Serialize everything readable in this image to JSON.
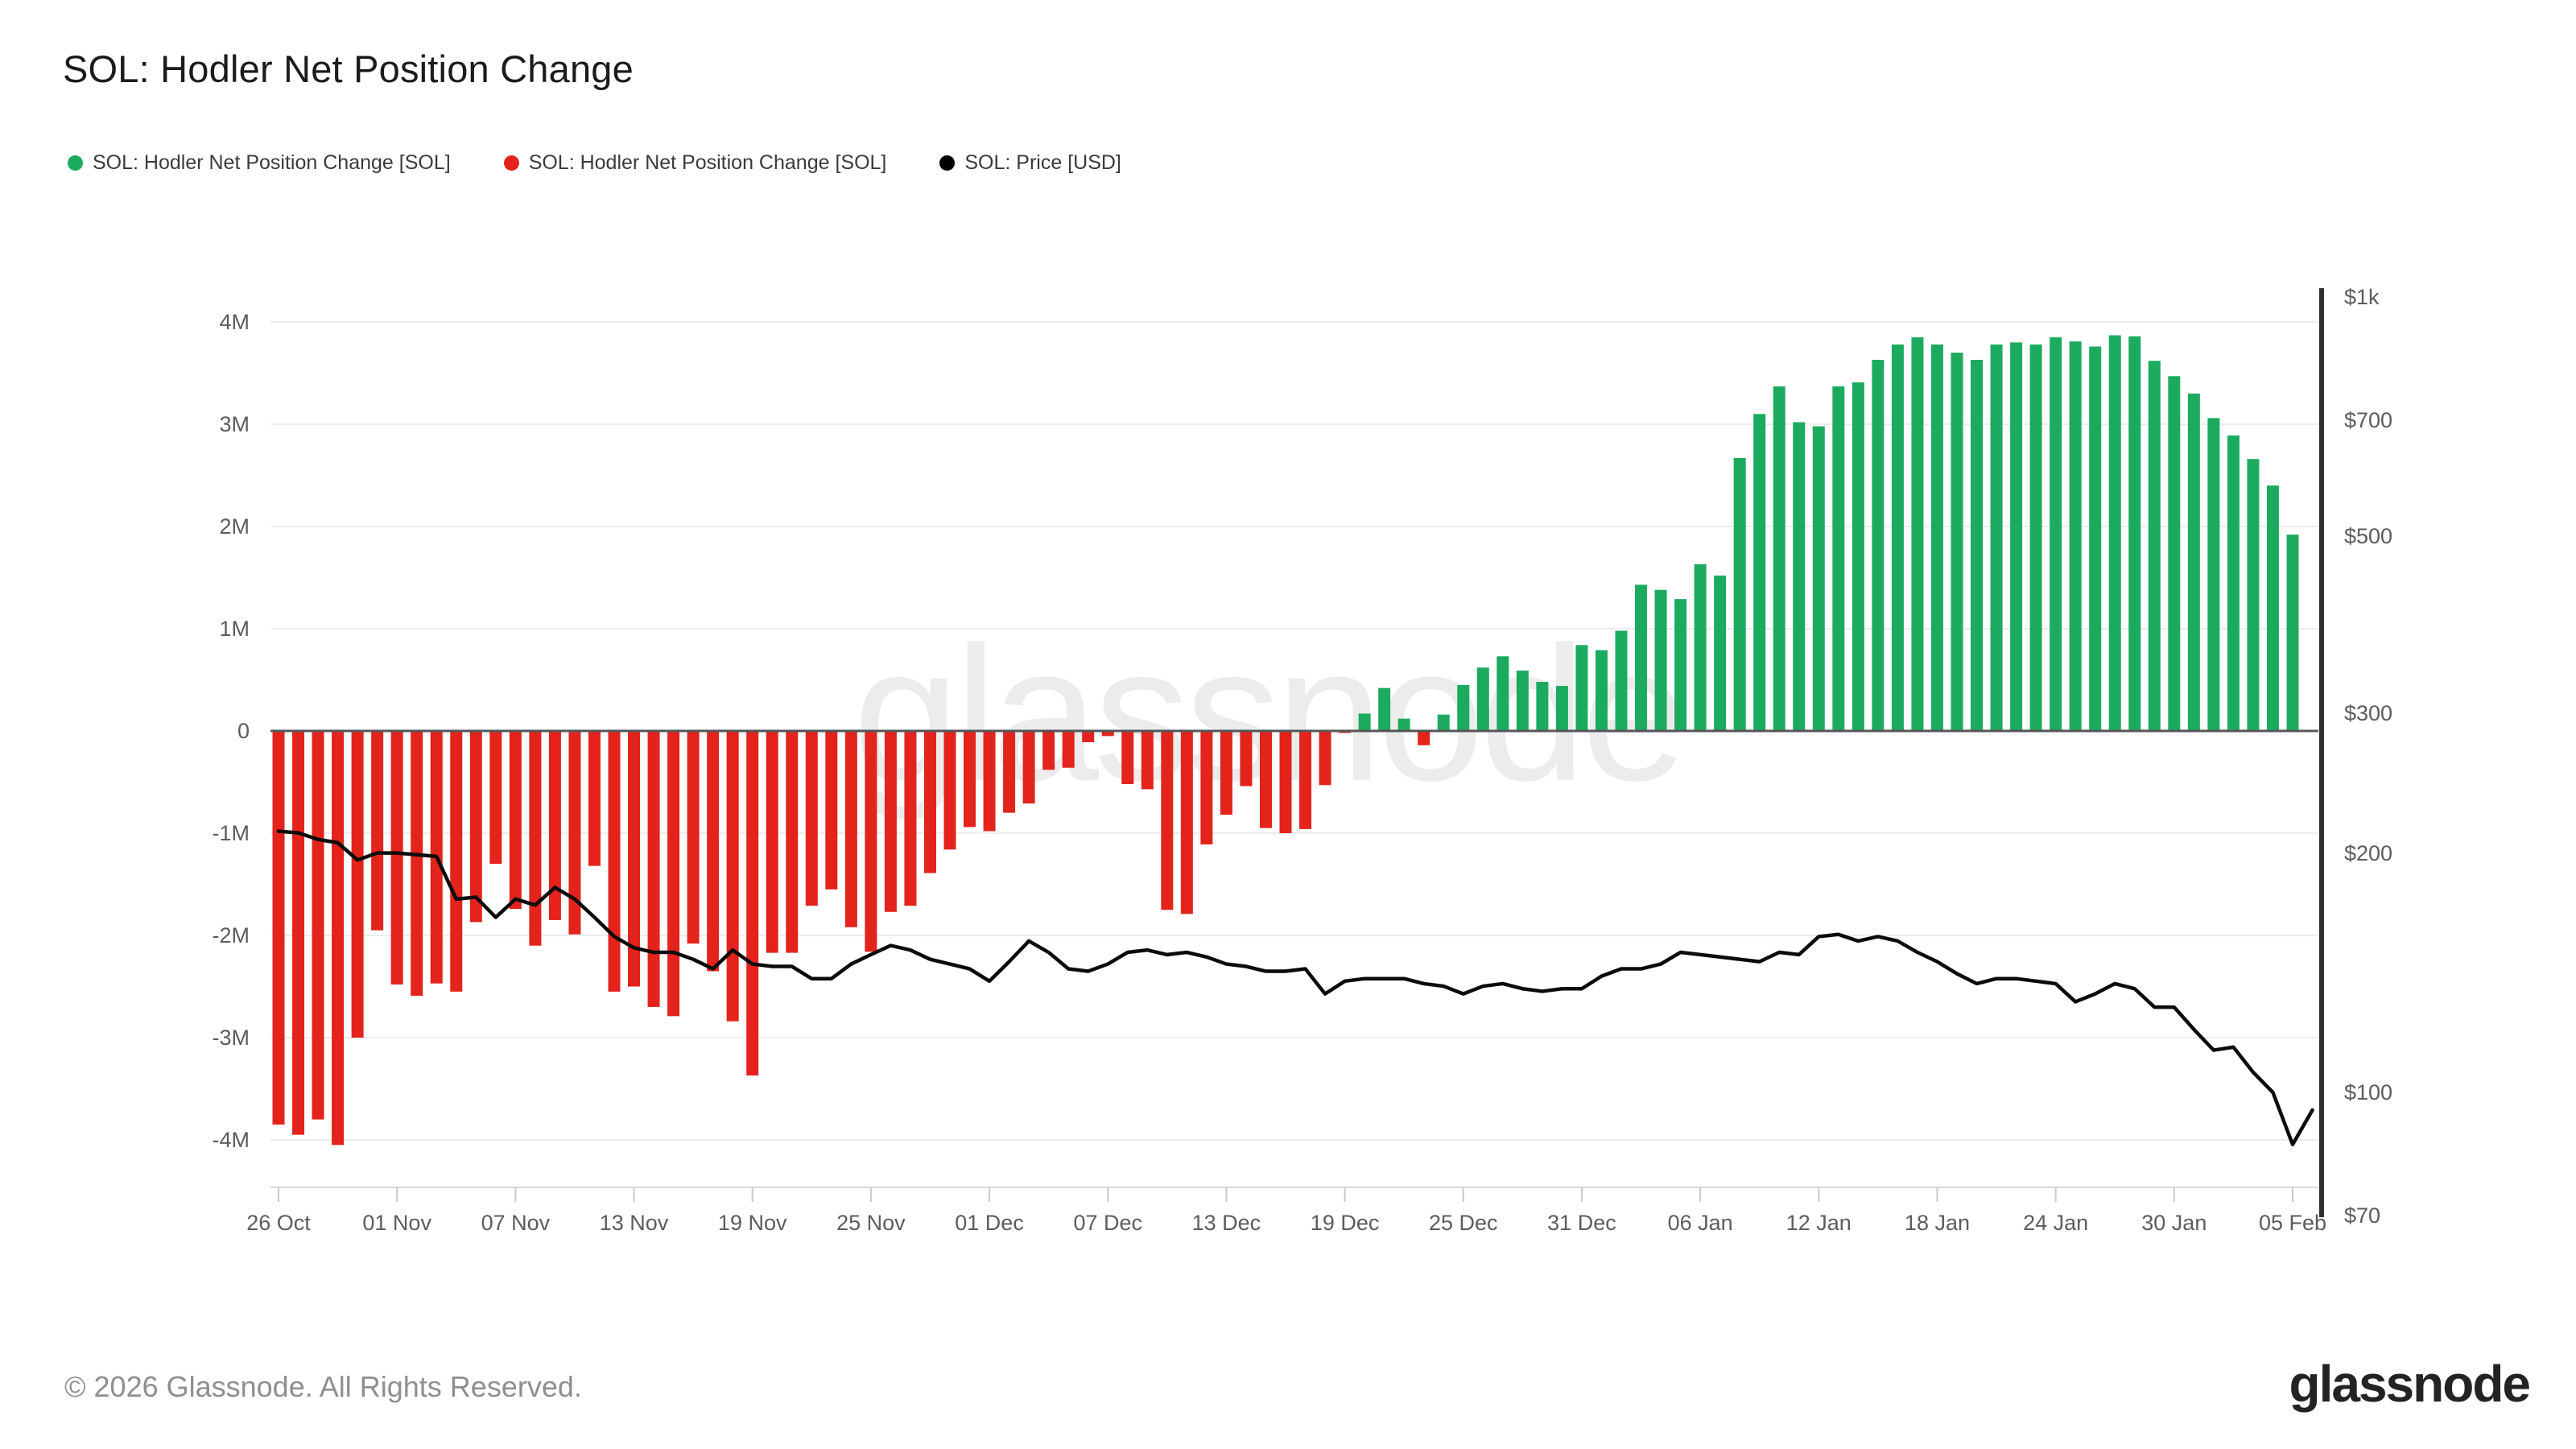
{
  "header": {
    "title": "SOL: Hodler Net Position Change"
  },
  "legend": {
    "items": [
      {
        "label": "SOL: Hodler Net Position Change [SOL]",
        "color": "#1CAB5E",
        "marker": "circle"
      },
      {
        "label": "SOL: Hodler Net Position Change [SOL]",
        "color": "#E3231C",
        "marker": "circle"
      },
      {
        "label": "SOL: Price [USD]",
        "color": "#000000",
        "marker": "circle"
      }
    ]
  },
  "watermark": "glassnode",
  "footer": {
    "copyright": "© 2026 Glassnode. All Rights Reserved.",
    "brand": "glassnode"
  },
  "chart_data": {
    "type": "bar",
    "title": "SOL: Hodler Net Position Change",
    "subtitle": "",
    "legend_position": "top-left",
    "grid": true,
    "left_axis": {
      "unit": "M SOL",
      "range": [
        -4.6,
        4.6
      ],
      "tick_labels": [
        "4M",
        "3M",
        "2M",
        "1M",
        "0",
        "-1M",
        "-2M",
        "-3M",
        "-4M"
      ],
      "tick_values": [
        4,
        3,
        2,
        1,
        0,
        -1,
        -2,
        -3,
        -4
      ]
    },
    "right_axis": {
      "unit": "USD",
      "scale": "log",
      "ticks": [
        {
          "label": "$1k",
          "value": 1000
        },
        {
          "label": "$700",
          "value": 700
        },
        {
          "label": "$500",
          "value": 500
        },
        {
          "label": "$300",
          "value": 300
        },
        {
          "label": "$200",
          "value": 200
        },
        {
          "label": "$100",
          "value": 100
        },
        {
          "label": "$70",
          "value": 70
        }
      ]
    },
    "x_ticks": [
      "26 Oct",
      "01 Nov",
      "07 Nov",
      "13 Nov",
      "19 Nov",
      "25 Nov",
      "01 Dec",
      "07 Dec",
      "13 Dec",
      "19 Dec",
      "25 Dec",
      "31 Dec",
      "06 Jan",
      "12 Jan",
      "18 Jan",
      "24 Jan",
      "30 Jan",
      "05 Feb"
    ],
    "x_tick_step": 6,
    "colors": {
      "positive": "#1CAB5E",
      "negative": "#E3231C",
      "price": "#0b0b0b",
      "gridline": "#ededf0",
      "zero_line": "#55565a",
      "right_axis_line": "#2f2f33",
      "x_axis_line": "#d9d9de"
    },
    "dates": [
      "26 Oct",
      "27 Oct",
      "28 Oct",
      "29 Oct",
      "30 Oct",
      "31 Oct",
      "01 Nov",
      "02 Nov",
      "03 Nov",
      "04 Nov",
      "05 Nov",
      "06 Nov",
      "07 Nov",
      "08 Nov",
      "09 Nov",
      "10 Nov",
      "11 Nov",
      "12 Nov",
      "13 Nov",
      "14 Nov",
      "15 Nov",
      "16 Nov",
      "17 Nov",
      "18 Nov",
      "19 Nov",
      "20 Nov",
      "21 Nov",
      "22 Nov",
      "23 Nov",
      "24 Nov",
      "25 Nov",
      "26 Nov",
      "27 Nov",
      "28 Nov",
      "29 Nov",
      "30 Nov",
      "01 Dec",
      "02 Dec",
      "03 Dec",
      "04 Dec",
      "05 Dec",
      "06 Dec",
      "07 Dec",
      "08 Dec",
      "09 Dec",
      "10 Dec",
      "11 Dec",
      "12 Dec",
      "13 Dec",
      "14 Dec",
      "15 Dec",
      "16 Dec",
      "17 Dec",
      "18 Dec",
      "19 Dec",
      "20 Dec",
      "21 Dec",
      "22 Dec",
      "23 Dec",
      "24 Dec",
      "25 Dec",
      "26 Dec",
      "27 Dec",
      "28 Dec",
      "29 Dec",
      "30 Dec",
      "31 Dec",
      "01 Jan",
      "02 Jan",
      "03 Jan",
      "04 Jan",
      "05 Jan",
      "06 Jan",
      "07 Jan",
      "08 Jan",
      "09 Jan",
      "10 Jan",
      "11 Jan",
      "12 Jan",
      "13 Jan",
      "14 Jan",
      "15 Jan",
      "16 Jan",
      "17 Jan",
      "18 Jan",
      "19 Jan",
      "20 Jan",
      "21 Jan",
      "22 Jan",
      "23 Jan",
      "24 Jan",
      "25 Jan",
      "26 Jan",
      "27 Jan",
      "28 Jan",
      "29 Jan",
      "30 Jan",
      "31 Jan",
      "01 Feb",
      "02 Feb",
      "03 Feb",
      "04 Feb",
      "05 Feb"
    ],
    "net_position_change_m": [
      -3.85,
      -3.95,
      -3.8,
      -4.05,
      -3.0,
      -1.95,
      -2.48,
      -2.59,
      -2.47,
      -2.55,
      -1.87,
      -1.3,
      -1.74,
      -2.1,
      -1.85,
      -1.99,
      -1.32,
      -2.55,
      -2.5,
      -2.7,
      -2.79,
      -2.08,
      -2.35,
      -2.84,
      -3.37,
      -2.17,
      -2.17,
      -1.71,
      -1.55,
      -1.92,
      -2.16,
      -1.77,
      -1.71,
      -1.39,
      -1.16,
      -0.94,
      -0.98,
      -0.8,
      -0.71,
      -0.38,
      -0.36,
      -0.11,
      -0.05,
      -0.52,
      -0.57,
      -1.75,
      -1.79,
      -1.11,
      -0.82,
      -0.54,
      -0.95,
      -1.0,
      -0.96,
      -0.53,
      -0.02,
      0.17,
      0.42,
      0.12,
      -0.14,
      0.16,
      0.45,
      0.62,
      0.73,
      0.59,
      0.48,
      0.44,
      0.84,
      0.79,
      0.98,
      1.43,
      1.38,
      1.29,
      1.63,
      1.52,
      2.67,
      3.1,
      3.37,
      3.02,
      2.98,
      3.37,
      3.41,
      3.63,
      3.78,
      3.85,
      3.78,
      3.7,
      3.63,
      3.78,
      3.8,
      3.78,
      3.85,
      3.81,
      3.76,
      3.87,
      3.86,
      3.62,
      3.47,
      3.3,
      3.06,
      2.89,
      2.66,
      2.4,
      1.92
    ],
    "price_usd": [
      213,
      212,
      208,
      206,
      196,
      200,
      200,
      199,
      198,
      175,
      176,
      166,
      175,
      172,
      181,
      175,
      166,
      157,
      152,
      150,
      150,
      147,
      143,
      151,
      145,
      144,
      144,
      139,
      139,
      145,
      149,
      153,
      151,
      147,
      145,
      143,
      138,
      146,
      155,
      150,
      143,
      142,
      145,
      150,
      151,
      149,
      150,
      148,
      145,
      144,
      142,
      142,
      143,
      133,
      138,
      139,
      139,
      139,
      137,
      136,
      133,
      136,
      137,
      135,
      134,
      135,
      135,
      140,
      143,
      143,
      145,
      150,
      149,
      148,
      147,
      146,
      150,
      149,
      157,
      158,
      155,
      157,
      155,
      150,
      146,
      141,
      137,
      139,
      139,
      138,
      137,
      130,
      133,
      137,
      135,
      128,
      128,
      120,
      113,
      114,
      106,
      100,
      86
    ],
    "price_tail_usd": 95
  }
}
